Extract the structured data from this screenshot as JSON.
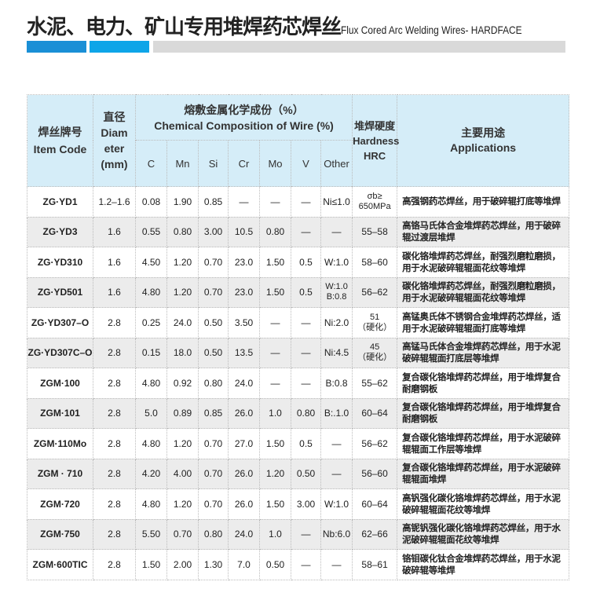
{
  "title": {
    "zh": "水泥、电力、矿山专用堆焊药芯焊丝",
    "en": "Flux Cored Arc Welding Wires- HARDFACE"
  },
  "colors": {
    "header_bg": "#d5edf8",
    "bar_blue_dark": "#1a8fd6",
    "bar_blue_light": "#0ea5e8",
    "bar_gray": "#d9d9d9"
  },
  "header": {
    "item_code_zh": "焊丝牌号",
    "item_code_en": "Item Code",
    "diam_zh": "直径",
    "diam_en1": "Diam",
    "diam_en2": "eter",
    "diam_unit": "(mm)",
    "chem_zh": "熔敷金属化学成份（%）",
    "chem_en": "Chemical Composition of Wire (%)",
    "elements": [
      "C",
      "Mn",
      "Si",
      "Cr",
      "Mo",
      "V",
      "Other"
    ],
    "hardness_zh": "堆焊硬度",
    "hardness_en": "Hardness",
    "hardness_unit": "HRC",
    "app_zh": "主要用途",
    "app_en": "Applications"
  },
  "rows": [
    {
      "code": "ZG·YD1",
      "diam": "1.2–1.6",
      "C": "0.08",
      "Mn": "1.90",
      "Si": "0.85",
      "Cr": "—",
      "Mo": "—",
      "V": "—",
      "Other": "Ni≤1.0",
      "hardness": "σb≥ 650MPa",
      "app": "高强钢药芯焊丝，用于破碎辊打底等堆焊"
    },
    {
      "code": "ZG·YD3",
      "diam": "1.6",
      "C": "0.55",
      "Mn": "0.80",
      "Si": "3.00",
      "Cr": "10.5",
      "Mo": "0.80",
      "V": "—",
      "Other": "—",
      "hardness": "55–58",
      "app": "高铬马氏体合金堆焊药芯焊丝，用于破碎辊过渡层堆焊"
    },
    {
      "code": "ZG·YD310",
      "diam": "1.6",
      "C": "4.50",
      "Mn": "1.20",
      "Si": "0.70",
      "Cr": "23.0",
      "Mo": "1.50",
      "V": "0.5",
      "Other": "W:1.0",
      "hardness": "58–60",
      "app": "碳化铬堆焊药芯焊丝，耐强烈磨粒磨损，用于水泥破碎辊辊面花纹等堆焊"
    },
    {
      "code": "ZG·YD501",
      "diam": "1.6",
      "C": "4.80",
      "Mn": "1.20",
      "Si": "0.70",
      "Cr": "23.0",
      "Mo": "1.50",
      "V": "0.5",
      "Other": "W:1.0 B:0.8",
      "hardness": "56–62",
      "app": "碳化铬堆焊药芯焊丝，耐强烈磨粒磨损，用于水泥破碎辊辊面花纹等堆焊"
    },
    {
      "code": "ZG·YD307–O",
      "diam": "2.8",
      "C": "0.25",
      "Mn": "24.0",
      "Si": "0.50",
      "Cr": "3.50",
      "Mo": "—",
      "V": "—",
      "Other": "Ni:2.0",
      "hardness": "51 （硬化）",
      "app": "高锰奥氏体不锈钢合金堆焊药芯焊丝，适用于水泥破碎辊辊面打底等堆焊"
    },
    {
      "code": "ZG·YD307C–O",
      "diam": "2.8",
      "C": "0.15",
      "Mn": "18.0",
      "Si": "0.50",
      "Cr": "13.5",
      "Mo": "—",
      "V": "—",
      "Other": "Ni:4.5",
      "hardness": "45 （硬化）",
      "app": "高锰马氏体合金堆焊药芯焊丝，用于水泥破碎辊辊面打底层等堆焊"
    },
    {
      "code": "ZGM·100",
      "diam": "2.8",
      "C": "4.80",
      "Mn": "0.92",
      "Si": "0.80",
      "Cr": "24.0",
      "Mo": "—",
      "V": "—",
      "Other": "B:0.8",
      "hardness": "55–62",
      "app": "复合碳化铬堆焊药芯焊丝，用于堆焊复合耐磨钢板"
    },
    {
      "code": "ZGM·101",
      "diam": "2.8",
      "C": "5.0",
      "Mn": "0.89",
      "Si": "0.85",
      "Cr": "26.0",
      "Mo": "1.0",
      "V": "0.80",
      "Other": "B:.1.0",
      "hardness": "60–64",
      "app": "复合碳化铬堆焊药芯焊丝，用于堆焊复合耐磨钢板"
    },
    {
      "code": "ZGM·110Mo",
      "diam": "2.8",
      "C": "4.80",
      "Mn": "1.20",
      "Si": "0.70",
      "Cr": "27.0",
      "Mo": "1.50",
      "V": "0.5",
      "Other": "—",
      "hardness": "56–62",
      "app": "复合碳化铬堆焊药芯焊丝，用于水泥破碎辊辊面工作层等堆焊"
    },
    {
      "code": "ZGM · 710",
      "diam": "2.8",
      "C": "4.20",
      "Mn": "4.00",
      "Si": "0.70",
      "Cr": "26.0",
      "Mo": "1.20",
      "V": "0.50",
      "Other": "—",
      "hardness": "56–60",
      "app": "复合碳化铬堆焊药芯焊丝，用于水泥破碎辊辊面堆焊"
    },
    {
      "code": "ZGM·720",
      "diam": "2.8",
      "C": "4.80",
      "Mn": "1.20",
      "Si": "0.70",
      "Cr": "26.0",
      "Mo": "1.50",
      "V": "3.00",
      "Other": "W:1.0",
      "hardness": "60–64",
      "app": "高钒强化碳化铬堆焊药芯焊丝，用于水泥破碎辊辊面花纹等堆焊"
    },
    {
      "code": "ZGM·750",
      "diam": "2.8",
      "C": "5.50",
      "Mn": "0.70",
      "Si": "0.80",
      "Cr": "24.0",
      "Mo": "1.0",
      "V": "—",
      "Other": "Nb:6.0",
      "hardness": "62–66",
      "app": "高铌钒强化碳化铬堆焊药芯焊丝，用于水泥破碎辊辊面花纹等堆焊"
    },
    {
      "code": "ZGM·600TIC",
      "diam": "2.8",
      "C": "1.50",
      "Mn": "2.00",
      "Si": "1.30",
      "Cr": "7.0",
      "Mo": "0.50",
      "V": "—",
      "Other": "—",
      "hardness": "58–61",
      "app": "铬钼碳化钛合金堆焊药芯焊丝，用于水泥破碎辊等堆焊"
    }
  ]
}
